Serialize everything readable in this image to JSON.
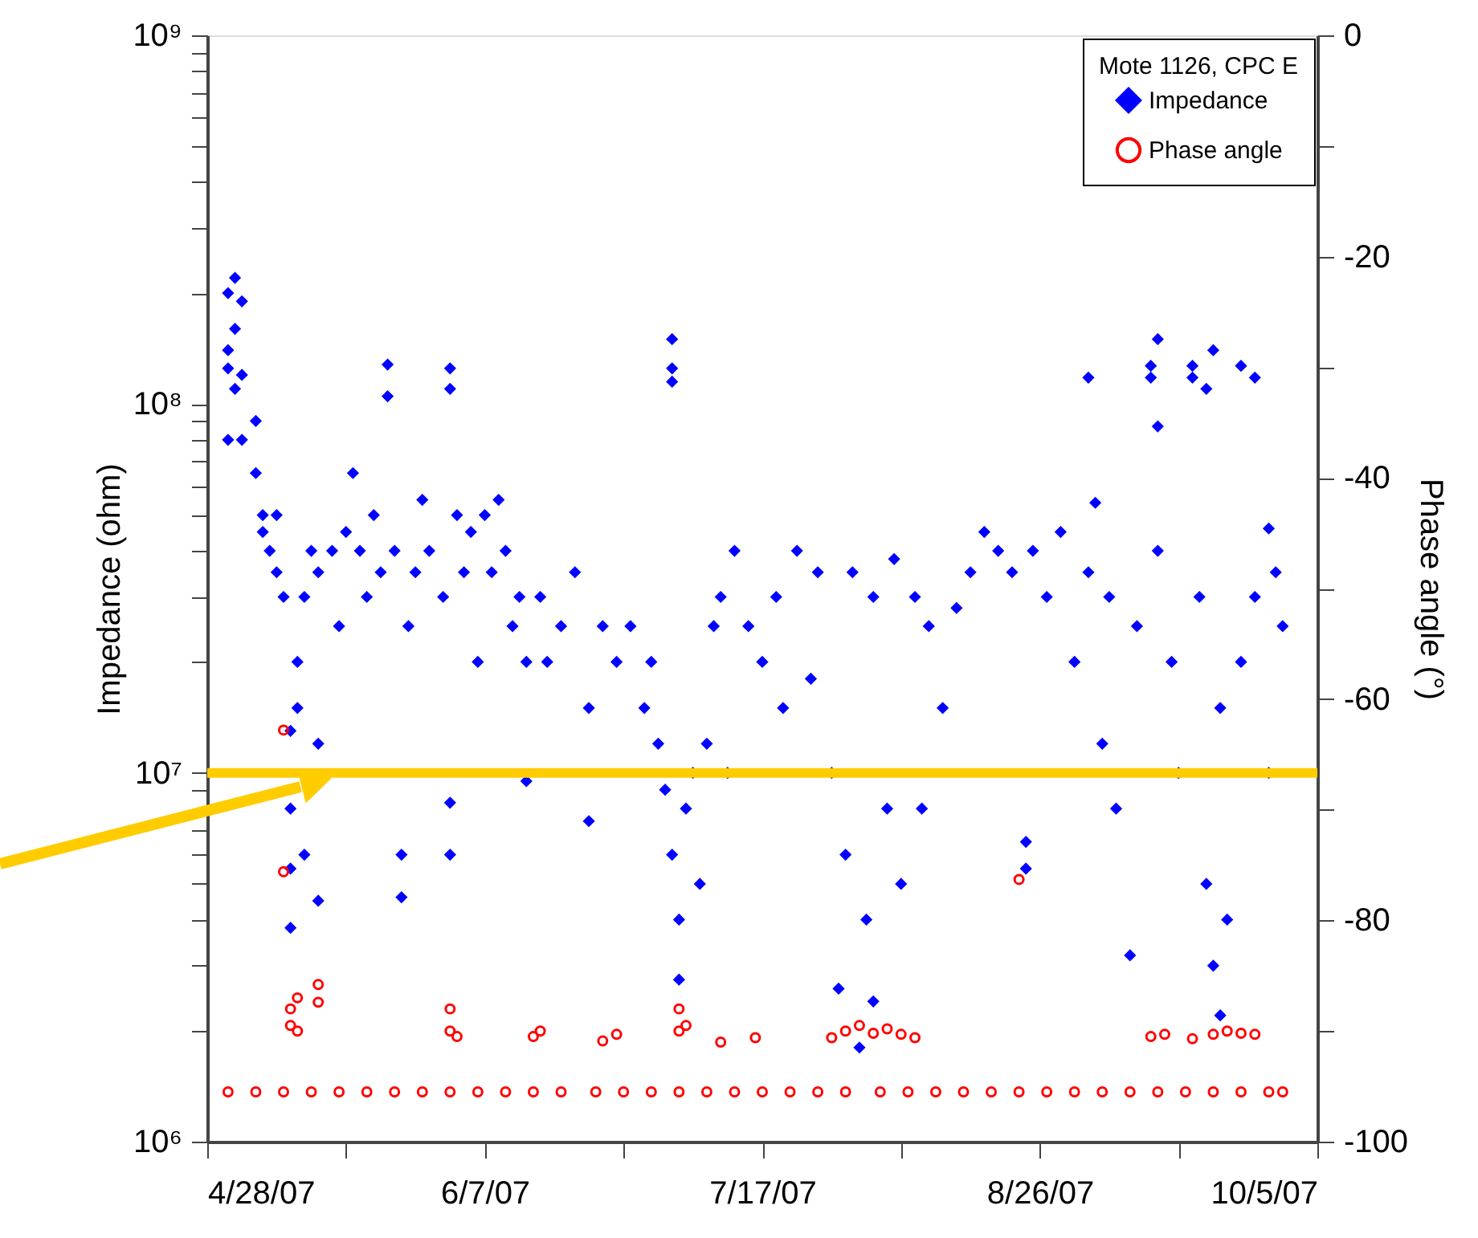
{
  "chart_data": {
    "type": "scatter",
    "ylabel": "Impedance (ohm)",
    "y2label": "Phase angle (°)",
    "legend_title": "Mote 1126, CPC E",
    "legend": "top right",
    "grid": false,
    "log": "y",
    "xlim": [
      "2007-04-28",
      "2007-10-05"
    ],
    "xticks": [
      {
        "value": "2007-04-28",
        "label": "4/28/07"
      },
      {
        "value": "2007-05-18",
        "label": null
      },
      {
        "value": "2007-06-07",
        "label": "6/7/07"
      },
      {
        "value": "2007-06-27",
        "label": null
      },
      {
        "value": "2007-07-17",
        "label": "7/17/07"
      },
      {
        "value": "2007-08-06",
        "label": null
      },
      {
        "value": "2007-08-26",
        "label": "8/26/07"
      },
      {
        "value": "2007-09-15",
        "label": null
      },
      {
        "value": "2007-10-05",
        "label": "10/5/07"
      }
    ],
    "ylim": [
      1000000,
      1000000000
    ],
    "yticks": [
      {
        "value": 1000000,
        "label": "10⁶"
      },
      {
        "value": 2000000,
        "label": null
      },
      {
        "value": 3000000,
        "label": null
      },
      {
        "value": 4000000,
        "label": null
      },
      {
        "value": 5000000,
        "label": null
      },
      {
        "value": 6000000,
        "label": null
      },
      {
        "value": 7000000,
        "label": null
      },
      {
        "value": 8000000,
        "label": null
      },
      {
        "value": 9000000,
        "label": null
      },
      {
        "value": 10000000,
        "label": "10⁷"
      },
      {
        "value": 20000000,
        "label": null
      },
      {
        "value": 30000000,
        "label": null
      },
      {
        "value": 40000000,
        "label": null
      },
      {
        "value": 50000000,
        "label": null
      },
      {
        "value": 60000000,
        "label": null
      },
      {
        "value": 70000000,
        "label": null
      },
      {
        "value": 80000000,
        "label": null
      },
      {
        "value": 90000000,
        "label": null
      },
      {
        "value": 100000000,
        "label": "10⁸"
      },
      {
        "value": 200000000,
        "label": null
      },
      {
        "value": 300000000,
        "label": null
      },
      {
        "value": 400000000,
        "label": null
      },
      {
        "value": 500000000,
        "label": null
      },
      {
        "value": 600000000,
        "label": null
      },
      {
        "value": 700000000,
        "label": null
      },
      {
        "value": 800000000,
        "label": null
      },
      {
        "value": 900000000,
        "label": null
      },
      {
        "value": 1000000000,
        "label": "10⁹"
      }
    ],
    "y2lim": [
      -100,
      0
    ],
    "y2ticks": [
      -100,
      {
        "value": -90,
        "label": null
      },
      -80,
      {
        "value": -70,
        "label": null
      },
      -60,
      {
        "value": -50,
        "label": null
      },
      -40,
      {
        "value": -30,
        "label": null
      },
      -20,
      {
        "value": -10,
        "label": null
      },
      0
    ],
    "ref_lines": [
      {
        "axis": "y",
        "value": 10000000,
        "color": "#ffcc00"
      }
    ],
    "series": [
      {
        "name": "Impedance",
        "color": "#0000ff",
        "marker": "diamond",
        "x": [
          "2007-05-01",
          "2007-05-01",
          "2007-05-01",
          "2007-05-01",
          "2007-05-02",
          "2007-05-02",
          "2007-05-02",
          "2007-05-03",
          "2007-05-03",
          "2007-05-03",
          "2007-05-05",
          "2007-05-05",
          "2007-05-06",
          "2007-05-06",
          "2007-05-07",
          "2007-05-08",
          "2007-05-08",
          "2007-05-09",
          "2007-05-10",
          "2007-05-10",
          "2007-05-10",
          "2007-05-10",
          "2007-05-11",
          "2007-05-11",
          "2007-05-12",
          "2007-05-12",
          "2007-05-13",
          "2007-05-14",
          "2007-05-14",
          "2007-05-14",
          "2007-05-16",
          "2007-05-17",
          "2007-05-18",
          "2007-05-19",
          "2007-05-20",
          "2007-05-21",
          "2007-05-22",
          "2007-05-23",
          "2007-05-24",
          "2007-05-24",
          "2007-05-25",
          "2007-05-26",
          "2007-05-26",
          "2007-05-27",
          "2007-05-28",
          "2007-05-29",
          "2007-05-30",
          "2007-06-01",
          "2007-06-02",
          "2007-06-02",
          "2007-06-02",
          "2007-06-02",
          "2007-06-03",
          "2007-06-04",
          "2007-06-05",
          "2007-06-06",
          "2007-06-07",
          "2007-06-08",
          "2007-06-09",
          "2007-06-10",
          "2007-06-11",
          "2007-06-12",
          "2007-06-13",
          "2007-06-13",
          "2007-06-15",
          "2007-06-16",
          "2007-06-18",
          "2007-06-20",
          "2007-06-22",
          "2007-06-22",
          "2007-06-24",
          "2007-06-26",
          "2007-06-28",
          "2007-06-30",
          "2007-07-01",
          "2007-07-02",
          "2007-07-03",
          "2007-07-04",
          "2007-07-04",
          "2007-07-04",
          "2007-07-04",
          "2007-07-05",
          "2007-07-05",
          "2007-07-06",
          "2007-07-07",
          "2007-07-08",
          "2007-07-09",
          "2007-07-10",
          "2007-07-11",
          "2007-07-12",
          "2007-07-13",
          "2007-07-15",
          "2007-07-17",
          "2007-07-19",
          "2007-07-20",
          "2007-07-22",
          "2007-07-24",
          "2007-07-25",
          "2007-07-27",
          "2007-07-28",
          "2007-07-29",
          "2007-07-30",
          "2007-07-31",
          "2007-08-01",
          "2007-08-02",
          "2007-08-02",
          "2007-08-04",
          "2007-08-05",
          "2007-08-06",
          "2007-08-08",
          "2007-08-09",
          "2007-08-10",
          "2007-08-12",
          "2007-08-14",
          "2007-08-16",
          "2007-08-18",
          "2007-08-20",
          "2007-08-22",
          "2007-08-24",
          "2007-08-24",
          "2007-08-25",
          "2007-08-27",
          "2007-08-29",
          "2007-08-31",
          "2007-09-02",
          "2007-09-02",
          "2007-09-03",
          "2007-09-04",
          "2007-09-05",
          "2007-09-06",
          "2007-09-08",
          "2007-09-09",
          "2007-09-11",
          "2007-09-11",
          "2007-09-12",
          "2007-09-12",
          "2007-09-12",
          "2007-09-14",
          "2007-09-15",
          "2007-09-17",
          "2007-09-17",
          "2007-09-18",
          "2007-09-19",
          "2007-09-19",
          "2007-09-20",
          "2007-09-20",
          "2007-09-21",
          "2007-09-21",
          "2007-09-22",
          "2007-09-24",
          "2007-09-24",
          "2007-09-26",
          "2007-09-26",
          "2007-09-28",
          "2007-09-28",
          "2007-09-29",
          "2007-09-30"
        ],
        "values": [
          200000000,
          140000000,
          125000000,
          80000000,
          220000000,
          160000000,
          110000000,
          190000000,
          120000000,
          80000000,
          90000000,
          65000000,
          50000000,
          45000000,
          40000000,
          50000000,
          35000000,
          30000000,
          13000000,
          8000000,
          5500000,
          3800000,
          20000000,
          15000000,
          30000000,
          6000000,
          40000000,
          35000000,
          12000000,
          4500000,
          40000000,
          25000000,
          45000000,
          65000000,
          40000000,
          30000000,
          50000000,
          35000000,
          128000000,
          105000000,
          40000000,
          6000000,
          4600000,
          25000000,
          35000000,
          55000000,
          40000000,
          30000000,
          125000000,
          110000000,
          8300000,
          6000000,
          50000000,
          35000000,
          45000000,
          20000000,
          50000000,
          35000000,
          55000000,
          40000000,
          25000000,
          30000000,
          9500000,
          20000000,
          30000000,
          20000000,
          25000000,
          35000000,
          7400000,
          15000000,
          25000000,
          20000000,
          25000000,
          15000000,
          20000000,
          12000000,
          9000000,
          150000000,
          125000000,
          115000000,
          6000000,
          4000000,
          2750000,
          8000000,
          10000000,
          5000000,
          12000000,
          25000000,
          30000000,
          10000000,
          40000000,
          25000000,
          20000000,
          30000000,
          15000000,
          40000000,
          18000000,
          35000000,
          10000000,
          2600000,
          6000000,
          35000000,
          1800000,
          4000000,
          2400000,
          30000000,
          8000000,
          38000000,
          5000000,
          30000000,
          8000000,
          25000000,
          15000000,
          28000000,
          35000000,
          45000000,
          40000000,
          35000000,
          6500000,
          5500000,
          40000000,
          30000000,
          45000000,
          20000000,
          118000000,
          35000000,
          54000000,
          12000000,
          30000000,
          8000000,
          3200000,
          25000000,
          118000000,
          127000000,
          150000000,
          87000000,
          40000000,
          20000000,
          10000000,
          127000000,
          118000000,
          30000000,
          110000000,
          5000000,
          140000000,
          3000000,
          2200000,
          15000000,
          4000000,
          127000000,
          20000000,
          118000000,
          30000000,
          46000000,
          10000000,
          35000000,
          25000000
        ]
      },
      {
        "name": "Phase angle",
        "color": "#ff0000",
        "marker": "circle",
        "axis": "y2",
        "x": [
          "2007-05-01",
          "2007-05-05",
          "2007-05-09",
          "2007-05-13",
          "2007-05-17",
          "2007-05-21",
          "2007-05-25",
          "2007-05-29",
          "2007-06-02",
          "2007-06-06",
          "2007-06-10",
          "2007-06-14",
          "2007-06-18",
          "2007-06-23",
          "2007-06-27",
          "2007-07-01",
          "2007-07-05",
          "2007-07-09",
          "2007-07-13",
          "2007-07-17",
          "2007-07-21",
          "2007-07-25",
          "2007-07-29",
          "2007-08-03",
          "2007-08-07",
          "2007-08-11",
          "2007-08-15",
          "2007-08-19",
          "2007-08-23",
          "2007-08-27",
          "2007-08-31",
          "2007-09-04",
          "2007-09-08",
          "2007-09-12",
          "2007-09-16",
          "2007-09-20",
          "2007-09-24",
          "2007-09-28",
          "2007-09-30",
          "2007-05-09",
          "2007-05-09",
          "2007-05-10",
          "2007-05-10",
          "2007-05-11",
          "2007-05-11",
          "2007-05-14",
          "2007-05-14",
          "2007-06-02",
          "2007-06-02",
          "2007-06-03",
          "2007-06-14",
          "2007-06-15",
          "2007-06-24",
          "2007-06-26",
          "2007-07-05",
          "2007-07-05",
          "2007-07-06",
          "2007-07-11",
          "2007-07-16",
          "2007-07-27",
          "2007-07-29",
          "2007-07-31",
          "2007-08-02",
          "2007-08-04",
          "2007-08-06",
          "2007-08-08",
          "2007-08-23",
          "2007-09-11",
          "2007-09-13",
          "2007-09-17",
          "2007-09-20",
          "2007-09-22",
          "2007-09-24",
          "2007-09-26"
        ],
        "values": [
          -95.5,
          -95.5,
          -95.5,
          -95.5,
          -95.5,
          -95.5,
          -95.5,
          -95.5,
          -95.5,
          -95.5,
          -95.5,
          -95.5,
          -95.5,
          -95.5,
          -95.5,
          -95.5,
          -95.5,
          -95.5,
          -95.5,
          -95.5,
          -95.5,
          -95.5,
          -95.5,
          -95.5,
          -95.5,
          -95.5,
          -95.5,
          -95.5,
          -95.5,
          -95.5,
          -95.5,
          -95.5,
          -95.5,
          -95.5,
          -95.5,
          -95.5,
          -95.5,
          -95.5,
          -95.5,
          -62.8,
          -75.6,
          -88,
          -89.5,
          -87,
          -90,
          -85.8,
          -87.4,
          -88,
          -90,
          -90.5,
          -90.5,
          -90,
          -90.9,
          -90.3,
          -88,
          -90,
          -89.5,
          -91,
          -90.6,
          -90.6,
          -90,
          -89.5,
          -90.2,
          -89.8,
          -90.3,
          -90.6,
          -76.3,
          -90.5,
          -90.3,
          -90.7,
          -90.3,
          -90,
          -90.2,
          -90.3
        ]
      }
    ]
  }
}
